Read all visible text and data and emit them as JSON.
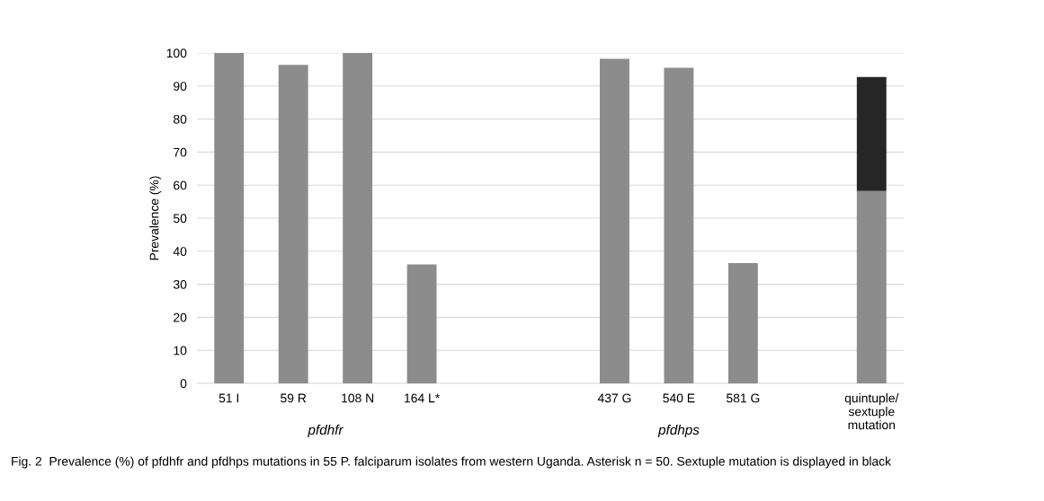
{
  "chart_data": {
    "type": "bar",
    "stacked": true,
    "ylabel": "Prevalence (%)",
    "categories": [
      "51 I",
      "59 R",
      "108 N",
      "164 L*",
      null,
      null,
      "437 G",
      "540 E",
      "581 G",
      null,
      "quintuple/\nsextuple\nmutation"
    ],
    "series": [
      {
        "color": "#8c8c8c",
        "values": [
          100,
          96.4,
          100,
          36,
          null,
          null,
          98.2,
          95.5,
          36.4,
          null,
          58.2
        ]
      },
      {
        "color": "#262626",
        "values": [
          null,
          null,
          null,
          null,
          null,
          null,
          null,
          null,
          null,
          null,
          34.5
        ]
      }
    ],
    "ylim": [
      0,
      100
    ],
    "yticks": [
      0,
      10,
      20,
      30,
      40,
      50,
      60,
      70,
      80,
      90,
      100
    ],
    "grid": "y",
    "annotations": [
      "pfdhfr",
      "pfdhps",
      "Fig. 2  Prevalence (%) of pfdhfr and pfdhps mutations in 55 P. falciparum isolates from western Uganda. Asterisk n = 50. Sextuple mutation is displayed in black"
    ]
  }
}
